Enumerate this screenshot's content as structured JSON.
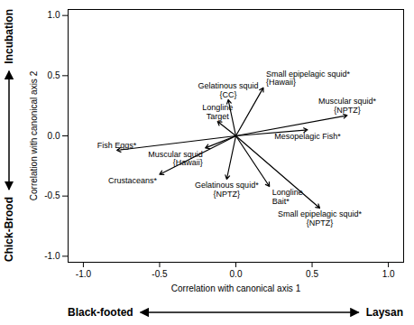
{
  "chart_data": {
    "type": "vector",
    "x_label": "Correlation with canonical axis 1",
    "y_label": "Correlation with canonical axis 2",
    "x_annotation": {
      "left": "Black-footed",
      "right": "Laysan"
    },
    "y_annotation": {
      "top": "Incubation",
      "bottom": "Chick-Brood"
    },
    "xlim": [
      -1.1,
      1.1
    ],
    "ylim": [
      -1.05,
      1.05
    ],
    "xticks": [
      {
        "value": -1,
        "label": "-1.0"
      },
      {
        "value": -0.5,
        "label": "-0.5"
      },
      {
        "value": 0,
        "label": "0.0"
      },
      {
        "value": 0.5,
        "label": "0.5"
      },
      {
        "value": 1,
        "label": "1.0"
      }
    ],
    "yticks": [
      {
        "value": -1,
        "label": "-1.0"
      },
      {
        "value": -0.5,
        "label": "-0.5"
      },
      {
        "value": 0,
        "label": "0.0"
      },
      {
        "value": 0.5,
        "label": "0.5"
      },
      {
        "value": 1,
        "label": "1.0"
      }
    ],
    "color": "#000000",
    "points": [
      {
        "label": "Small epipelagic squid*\n{Hawaii}",
        "x": 0.18,
        "y": 0.4
      },
      {
        "label": "Gelatinous squid\n{CC}",
        "x": -0.05,
        "y": 0.3
      },
      {
        "label": "Longline\nTarget",
        "x": -0.12,
        "y": 0.12
      },
      {
        "label": "Muscular squid*\n{NPTZ}",
        "x": 0.73,
        "y": 0.17
      },
      {
        "label": "Mesopelagic Fish*",
        "x": 0.47,
        "y": 0.05
      },
      {
        "label": "Fish Eggs*",
        "x": -0.78,
        "y": -0.12
      },
      {
        "label": "Crustaceans*",
        "x": -0.5,
        "y": -0.32
      },
      {
        "label": "Muscular squid\n{Hawaii}",
        "x": -0.2,
        "y": -0.1
      },
      {
        "label": "Gelatinous squid*\n{NPTZ}",
        "x": -0.06,
        "y": -0.36
      },
      {
        "label": "Longline\nBait*",
        "x": 0.22,
        "y": -0.42
      },
      {
        "label": "Small epipelagic squid*\n{NPTZ}",
        "x": 0.55,
        "y": -0.6
      }
    ]
  }
}
